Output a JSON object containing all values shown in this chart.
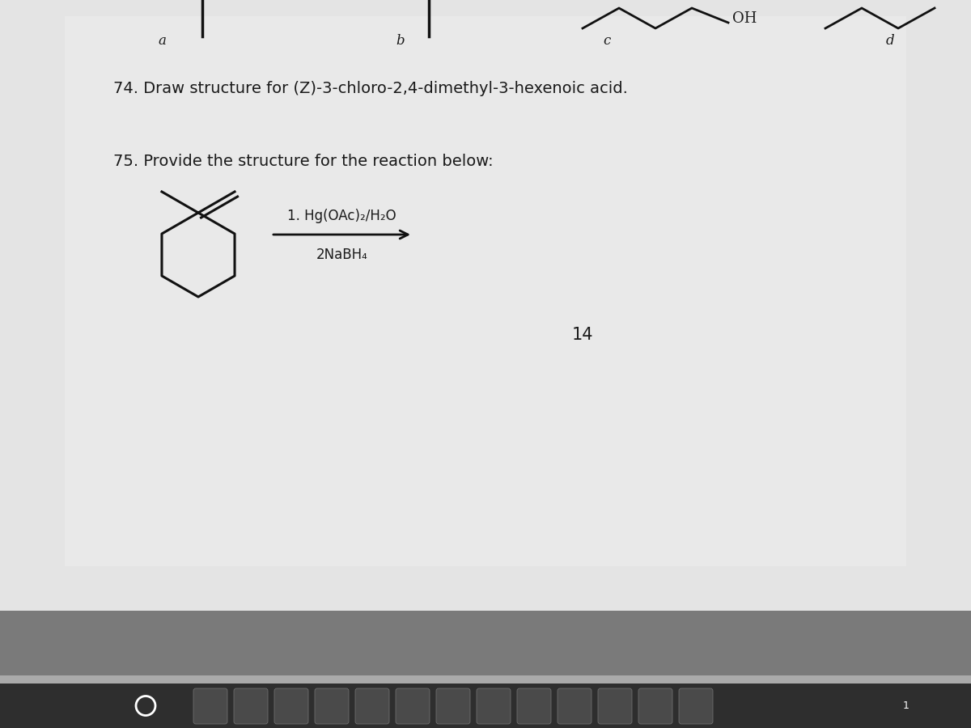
{
  "bg_top_color": "#c8c8c8",
  "page_color": "#e4e4e4",
  "page_lower_color": "#b0b0b0",
  "text_color": "#1a1a1a",
  "q74_text": "74. Draw structure for (Z)-3-chloro-2,4-dimethyl-3-hexenoic acid.",
  "q75_text": "75. Provide the structure for the reaction below:",
  "reagent_line1": "1. Hg(OAc)₂/H₂O",
  "reagent_line2": "2NaBH₄",
  "page_number": "14",
  "label_a": "a",
  "label_b": "b",
  "label_c": "c",
  "label_d": "d",
  "label_oh": "OH",
  "structure_color": "#111111",
  "taskbar_color": "#2e2e2e",
  "taskbar_icon_color": "#555555"
}
